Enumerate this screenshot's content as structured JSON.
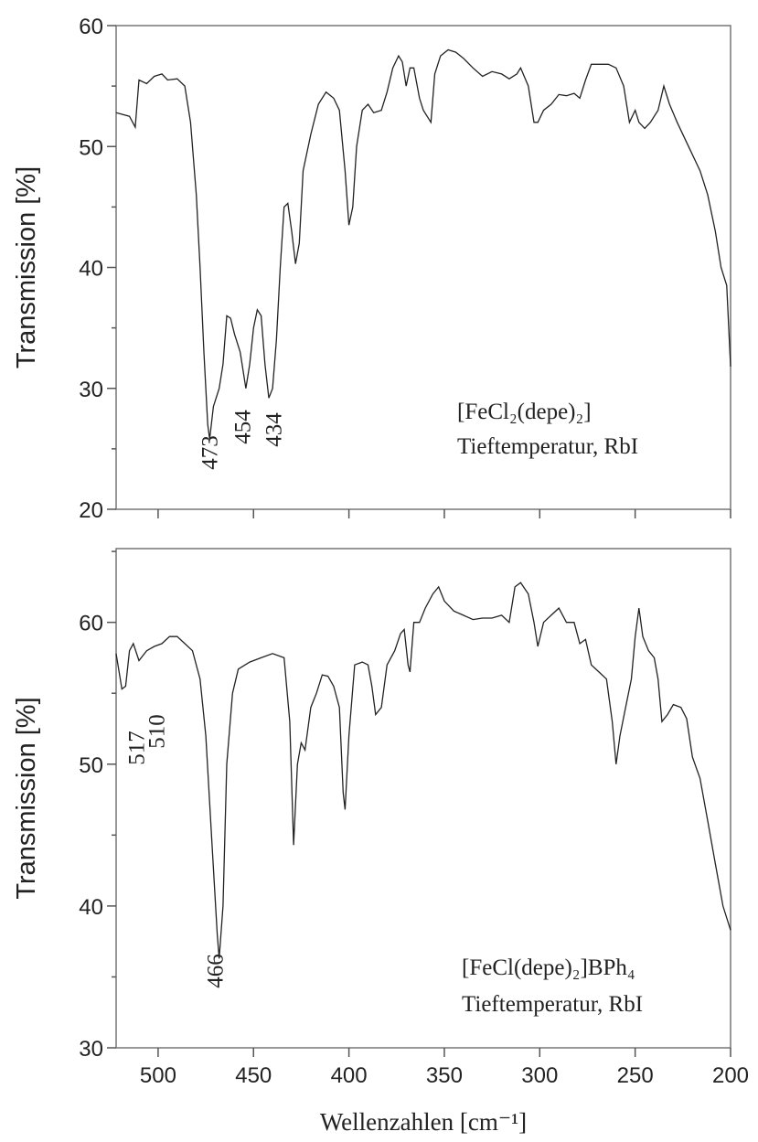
{
  "chart_data": [
    {
      "type": "line",
      "y_label": "Transmission [%]",
      "color": "#222222",
      "xlim": [
        522,
        200
      ],
      "ylim": [
        20,
        60
      ],
      "xticks": [
        500,
        450,
        400,
        350,
        300,
        250,
        200
      ],
      "show_xtick_labels": false,
      "yticks": [
        20,
        30,
        40,
        50,
        60
      ],
      "yminorticks": [
        25,
        35,
        45,
        55
      ],
      "annotations": [
        "473",
        "454",
        "434"
      ],
      "sample_label": [
        "[FeCl₂(depe)₂]",
        "Tieftemperatur, RbI"
      ],
      "x": [
        522,
        515,
        512,
        510,
        506,
        502,
        498,
        495,
        490,
        486,
        483,
        480,
        478,
        476,
        474,
        473,
        471,
        468,
        466,
        464,
        462,
        460,
        457,
        454,
        452,
        450,
        448,
        446,
        444,
        442,
        440,
        438,
        436,
        434,
        432,
        430,
        428,
        426,
        424,
        420,
        416,
        412,
        408,
        405,
        402,
        400,
        398,
        396,
        393,
        390,
        387,
        383,
        380,
        377,
        374,
        372,
        370,
        368,
        366,
        363,
        361,
        357,
        355,
        352,
        348,
        344,
        340,
        335,
        330,
        325,
        320,
        316,
        312,
        310,
        306,
        303,
        301,
        298,
        294,
        290,
        286,
        282,
        279,
        276,
        273,
        268,
        264,
        260,
        256,
        253,
        250,
        248,
        245,
        242,
        238,
        235,
        232,
        228,
        222,
        216,
        212,
        208,
        205,
        202,
        200
      ],
      "values": [
        52.8,
        52.5,
        51.6,
        55.5,
        55.2,
        55.8,
        56,
        55.5,
        55.6,
        55,
        52,
        46,
        40,
        33,
        27,
        25.8,
        28.5,
        30,
        32,
        36,
        35.8,
        34.5,
        33,
        30,
        32,
        35,
        36.5,
        36,
        32,
        29.2,
        30,
        34,
        40,
        45,
        45.3,
        43,
        40.3,
        42,
        48,
        51,
        53.5,
        54.5,
        54,
        53,
        48,
        43.5,
        45,
        50,
        53,
        53.5,
        52.8,
        53,
        54.5,
        56.5,
        57.5,
        57,
        55,
        56.5,
        56.5,
        54,
        53,
        52,
        56,
        57.5,
        58,
        57.8,
        57.3,
        56.5,
        55.8,
        56.2,
        56,
        55.6,
        56,
        56.5,
        55,
        52,
        52,
        53,
        53.5,
        54.3,
        54.2,
        54.4,
        54,
        55.5,
        56.8,
        56.8,
        56.8,
        56.5,
        55,
        52,
        53,
        52,
        51.5,
        52,
        53,
        55,
        53.5,
        52,
        50,
        48,
        46,
        43,
        40,
        38.5,
        31.8
      ]
    },
    {
      "type": "line",
      "y_label": "Transmission [%]",
      "x_label": "Wellenzahlen [cm⁻¹]",
      "color": "#222222",
      "xlim": [
        522,
        200
      ],
      "ylim": [
        30,
        65.2
      ],
      "xticks": [
        500,
        450,
        400,
        350,
        300,
        250,
        200
      ],
      "show_xtick_labels": true,
      "yticks": [
        30,
        40,
        50,
        60
      ],
      "yminorticks": [
        35,
        45,
        55,
        65
      ],
      "annotations": [
        "517",
        "510",
        "466"
      ],
      "sample_label": [
        "[FeCl(depe)₂]BPh₄",
        "Tieftemperatur, RbI"
      ],
      "x": [
        522,
        519,
        517,
        515,
        513,
        510,
        506,
        502,
        498,
        494,
        490,
        486,
        482,
        478,
        475,
        472,
        469,
        468,
        466,
        464,
        461,
        458,
        452,
        446,
        440,
        434,
        431,
        429,
        427,
        425,
        423,
        420,
        417,
        414,
        411,
        408,
        405,
        403,
        402,
        400,
        397,
        393,
        390,
        388,
        386,
        383,
        380,
        376,
        373,
        371,
        369,
        368,
        366,
        363,
        360,
        356,
        353,
        350,
        345,
        340,
        335,
        330,
        325,
        320,
        316,
        313,
        310,
        306,
        303,
        301,
        298,
        294,
        290,
        286,
        282,
        279,
        276,
        273,
        269,
        265,
        262,
        260,
        258,
        255,
        252,
        250,
        248,
        246,
        243,
        240,
        238,
        236,
        233,
        230,
        226,
        223,
        220,
        216,
        212,
        208,
        204,
        200
      ],
      "values": [
        57.8,
        55.3,
        55.5,
        58,
        58.5,
        57.3,
        58,
        58.3,
        58.5,
        59,
        59,
        58.5,
        58,
        56,
        52,
        45,
        38,
        36.3,
        40,
        50,
        55,
        56.7,
        57.2,
        57.5,
        57.8,
        57.5,
        53,
        44.3,
        50,
        51.5,
        51,
        54,
        55,
        56.3,
        56.2,
        55.5,
        54,
        48,
        46.8,
        52,
        57,
        57.2,
        57,
        55.5,
        53.5,
        54,
        57,
        58,
        59.2,
        59.5,
        57,
        56.5,
        60,
        60,
        61,
        62,
        62.5,
        61.5,
        60.8,
        60.5,
        60.2,
        60.3,
        60.3,
        60.5,
        60,
        62.5,
        62.8,
        62,
        60,
        58.3,
        60,
        60.5,
        61,
        60,
        60,
        58.5,
        58.8,
        57,
        56.5,
        56,
        53,
        50,
        52,
        54,
        56,
        59,
        61,
        59,
        58,
        57.5,
        56,
        53,
        53.5,
        54.2,
        54,
        53.2,
        50.5,
        49,
        46,
        43,
        40,
        38.3
      ]
    }
  ]
}
